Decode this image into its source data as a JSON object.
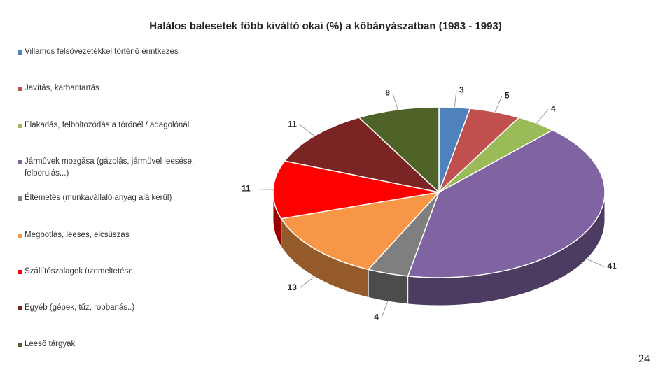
{
  "chart_data": {
    "type": "pie3d",
    "title": "Halálos balesetek főbb kiváltó okai (%) a kőbányászatban (1983 - 1993)",
    "categories": [
      "Villamos felsővezetékkel történő érintkezés",
      "Javítás, karbantartás",
      "Elakadás, felboltozódás a törőnél / adagolónál",
      "Járművek mozgása (gázolás, jármüvel leesése, felborulás...)",
      "Éltemetés (munkavállaló anyag alá kerül)",
      "Megbotlás, leesés, elcsúszás",
      "Szállítószalagok üzemeltetése",
      "Egyéb (gépek, tűz, robbanás..)",
      "Leeső tárgyak"
    ],
    "values": [
      3,
      5,
      4,
      41,
      4,
      13,
      11,
      11,
      8
    ],
    "colors": [
      "#4f81bd",
      "#c0504d",
      "#9bbb59",
      "#8064a2",
      "#7f7f7f",
      "#f79646",
      "#ff0000",
      "#7a2424",
      "#4f6228"
    ],
    "legend": "left"
  },
  "page_label": "24"
}
